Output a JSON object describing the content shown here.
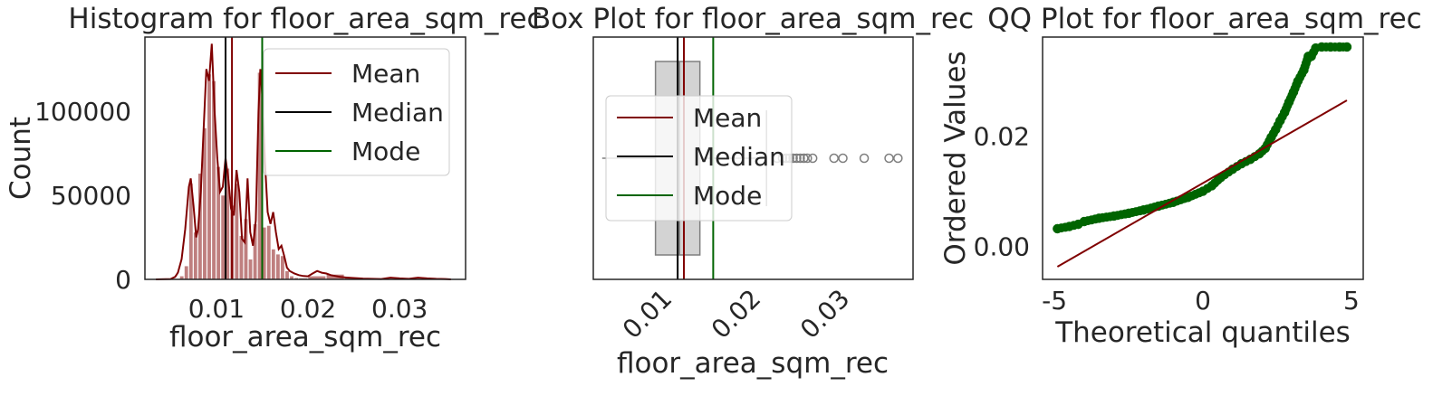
{
  "chart_data": [
    {
      "type": "histogram",
      "title": "Histogram for floor_area_sqm_rec",
      "xlabel": "floor_area_sqm_rec",
      "ylabel": "Count",
      "xlim": [
        0.0022,
        0.0372
      ],
      "ylim": [
        0,
        144000
      ],
      "xticks": [
        0.01,
        0.02,
        0.03
      ],
      "xtick_labels": [
        "0.01",
        "0.02",
        "0.03"
      ],
      "yticks": [
        0,
        50000,
        100000
      ],
      "ytick_labels": [
        "0",
        "50000",
        "100000"
      ],
      "bins": [
        {
          "x0": 0.006,
          "x1": 0.0065,
          "count": 2000
        },
        {
          "x0": 0.0065,
          "x1": 0.007,
          "count": 8000
        },
        {
          "x0": 0.007,
          "x1": 0.0075,
          "count": 57000
        },
        {
          "x0": 0.0075,
          "x1": 0.008,
          "count": 28000
        },
        {
          "x0": 0.008,
          "x1": 0.0085,
          "count": 63000
        },
        {
          "x0": 0.0085,
          "x1": 0.009,
          "count": 90000
        },
        {
          "x0": 0.009,
          "x1": 0.0095,
          "count": 122000
        },
        {
          "x0": 0.0095,
          "x1": 0.01,
          "count": 118000
        },
        {
          "x0": 0.01,
          "x1": 0.0105,
          "count": 67000
        },
        {
          "x0": 0.0105,
          "x1": 0.011,
          "count": 50000
        },
        {
          "x0": 0.011,
          "x1": 0.0115,
          "count": 66000
        },
        {
          "x0": 0.0115,
          "x1": 0.012,
          "count": 44000
        },
        {
          "x0": 0.012,
          "x1": 0.0125,
          "count": 57000
        },
        {
          "x0": 0.0125,
          "x1": 0.013,
          "count": 26000
        },
        {
          "x0": 0.013,
          "x1": 0.0135,
          "count": 36000
        },
        {
          "x0": 0.0135,
          "x1": 0.014,
          "count": 12000
        },
        {
          "x0": 0.014,
          "x1": 0.0145,
          "count": 33000
        },
        {
          "x0": 0.0145,
          "x1": 0.015,
          "count": 123000
        },
        {
          "x0": 0.015,
          "x1": 0.0155,
          "count": 31000
        },
        {
          "x0": 0.0155,
          "x1": 0.016,
          "count": 32000
        },
        {
          "x0": 0.016,
          "x1": 0.0165,
          "count": 18000
        },
        {
          "x0": 0.0165,
          "x1": 0.017,
          "count": 15000
        },
        {
          "x0": 0.017,
          "x1": 0.0175,
          "count": 14000
        },
        {
          "x0": 0.0175,
          "x1": 0.018,
          "count": 5000
        },
        {
          "x0": 0.018,
          "x1": 0.0185,
          "count": 2000
        },
        {
          "x0": 0.0185,
          "x1": 0.019,
          "count": 1000
        },
        {
          "x0": 0.019,
          "x1": 0.02,
          "count": 800
        },
        {
          "x0": 0.02,
          "x1": 0.022,
          "count": 2000
        },
        {
          "x0": 0.022,
          "x1": 0.024,
          "count": 3000
        },
        {
          "x0": 0.024,
          "x1": 0.026,
          "count": 1200
        },
        {
          "x0": 0.026,
          "x1": 0.03,
          "count": 300
        },
        {
          "x0": 0.03,
          "x1": 0.032,
          "count": 600
        },
        {
          "x0": 0.032,
          "x1": 0.036,
          "count": 150
        }
      ],
      "kde": {
        "x": [
          0.0034,
          0.005,
          0.0055,
          0.0058,
          0.0062,
          0.0066,
          0.007,
          0.0072,
          0.0075,
          0.0078,
          0.008,
          0.0083,
          0.0086,
          0.0089,
          0.0092,
          0.0095,
          0.0098,
          0.0101,
          0.0104,
          0.0107,
          0.011,
          0.0113,
          0.0116,
          0.0119,
          0.0122,
          0.0125,
          0.0128,
          0.0131,
          0.0134,
          0.0137,
          0.014,
          0.0143,
          0.0146,
          0.0148,
          0.015,
          0.0153,
          0.0156,
          0.0159,
          0.0162,
          0.0165,
          0.0168,
          0.0171,
          0.0174,
          0.0177,
          0.018,
          0.0185,
          0.019,
          0.0195,
          0.02,
          0.0205,
          0.021,
          0.0215,
          0.022,
          0.0225,
          0.023,
          0.0235,
          0.024,
          0.025,
          0.026,
          0.027,
          0.028,
          0.029,
          0.03,
          0.031,
          0.032,
          0.033,
          0.034,
          0.035,
          0.0356
        ],
        "y": [
          0,
          200,
          1500,
          4000,
          12000,
          30000,
          55000,
          60000,
          44000,
          25000,
          30000,
          52000,
          88000,
          125000,
          118000,
          140000,
          100000,
          72000,
          52000,
          55000,
          72000,
          60000,
          42000,
          38000,
          65000,
          52000,
          24000,
          22000,
          60000,
          28000,
          20000,
          35000,
          100000,
          125000,
          110000,
          70000,
          40000,
          33000,
          40000,
          28000,
          18000,
          20000,
          14000,
          7000,
          5000,
          3500,
          2500,
          2000,
          1800,
          3500,
          5000,
          4000,
          3500,
          2500,
          2000,
          1500,
          1200,
          800,
          500,
          300,
          200,
          1000,
          600,
          300,
          1000,
          600,
          300,
          200,
          0
        ]
      },
      "vlines": [
        {
          "name": "Mean",
          "x": 0.0117,
          "color": "#800000"
        },
        {
          "name": "Median",
          "x": 0.011,
          "color": "#000000"
        },
        {
          "name": "Mode",
          "x": 0.015,
          "color": "#006400"
        }
      ],
      "legend": [
        "Mean",
        "Median",
        "Mode"
      ],
      "legend_position": "upper right",
      "colors": {
        "bars": "#800000",
        "kde": "#800000"
      },
      "grid": false
    },
    {
      "type": "box",
      "title": "Box Plot for floor_area_sqm_rec",
      "xlabel": "floor_area_sqm_rec",
      "xlim": [
        0.0015,
        0.0375
      ],
      "xticks": [
        0.01,
        0.02,
        0.03
      ],
      "xtick_labels": [
        "0.01",
        "0.02",
        "0.03"
      ],
      "box": {
        "whisker_low": 0.0025,
        "q1": 0.0085,
        "median": 0.0112,
        "q3": 0.0135,
        "whisker_high": 0.021
      },
      "outliers": [
        0.0222,
        0.0228,
        0.0232,
        0.0236,
        0.024,
        0.0244,
        0.0248,
        0.0252,
        0.0256,
        0.0262,
        0.0286,
        0.0296,
        0.032,
        0.0348,
        0.0358
      ],
      "vlines": [
        {
          "name": "Mean",
          "x": 0.0117,
          "color": "#800000"
        },
        {
          "name": "Median",
          "x": 0.011,
          "color": "#000000"
        },
        {
          "name": "Mode",
          "x": 0.015,
          "color": "#006400"
        }
      ],
      "legend": [
        "Mean",
        "Median",
        "Mode"
      ],
      "legend_position": "center left",
      "colors": {
        "box_fill": "#d3d3d3"
      },
      "grid": false
    },
    {
      "type": "scatter",
      "title": "QQ Plot for floor_area_sqm_rec",
      "xlabel": "Theoretical quantiles",
      "ylabel": "Ordered Values",
      "xlim": [
        -5.4,
        5.4
      ],
      "ylim": [
        -0.006,
        0.038
      ],
      "xticks": [
        -5,
        0,
        5
      ],
      "xtick_labels": [
        "-5",
        "0",
        "5"
      ],
      "yticks": [
        0.0,
        0.02
      ],
      "ytick_labels": [
        "0.00",
        "0.02"
      ],
      "points": {
        "x": [
          -4.9,
          -4.5,
          -4.2,
          -4.0,
          -3.5,
          -3.0,
          -2.5,
          -2.0,
          -1.5,
          -1.0,
          -0.5,
          0.0,
          0.3,
          0.6,
          1.0,
          1.3,
          1.6,
          1.9,
          2.1,
          2.3,
          2.45,
          2.6,
          2.75,
          2.9,
          3.05,
          3.2,
          3.4,
          3.55,
          3.65,
          3.8,
          4.0,
          4.3,
          4.6,
          4.85
        ],
        "y": [
          0.0032,
          0.0036,
          0.004,
          0.0045,
          0.0051,
          0.0055,
          0.006,
          0.0066,
          0.0073,
          0.008,
          0.0089,
          0.01,
          0.011,
          0.0125,
          0.014,
          0.015,
          0.0158,
          0.0168,
          0.0178,
          0.0198,
          0.0212,
          0.0228,
          0.0243,
          0.0262,
          0.028,
          0.03,
          0.032,
          0.0345,
          0.0345,
          0.036,
          0.0362,
          0.0362,
          0.0362,
          0.0362
        ]
      },
      "line": {
        "x": [
          -4.9,
          4.85
        ],
        "y": [
          -0.0037,
          0.0265
        ]
      },
      "colors": {
        "points": "#006400",
        "line": "#800000"
      },
      "grid": false
    }
  ]
}
